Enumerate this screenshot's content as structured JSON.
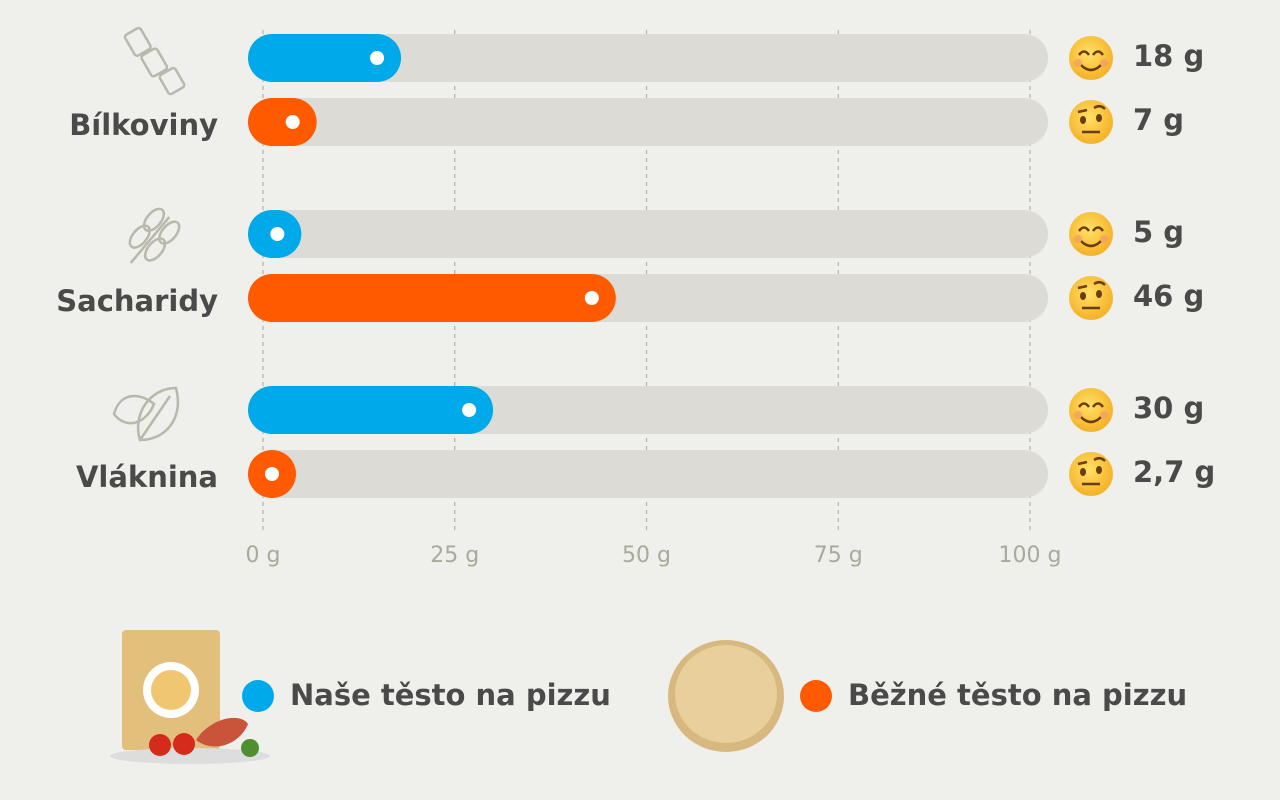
{
  "chart_data": {
    "type": "bar",
    "categories": [
      "Bílkoviny",
      "Sacharidy",
      "Vláknina"
    ],
    "series": [
      {
        "name": "Naše těsto na pizzu",
        "color": "#00a9ea",
        "values": [
          18,
          5,
          30
        ],
        "value_labels": [
          "18 g",
          "5 g",
          "30 g"
        ]
      },
      {
        "name": "Běžné těsto na pizzu",
        "color": "#ff5a00",
        "values": [
          7,
          46,
          2.7
        ],
        "value_labels": [
          "7 g",
          "46 g",
          "2,7 g"
        ]
      }
    ],
    "xlim": [
      0,
      100
    ],
    "xticks": [
      {
        "value": 0,
        "label": "0 g"
      },
      {
        "value": 25,
        "label": "25 g"
      },
      {
        "value": 50,
        "label": "50 g"
      },
      {
        "value": 75,
        "label": "75 g"
      },
      {
        "value": 100,
        "label": "100 g"
      }
    ],
    "grid": true
  }
}
